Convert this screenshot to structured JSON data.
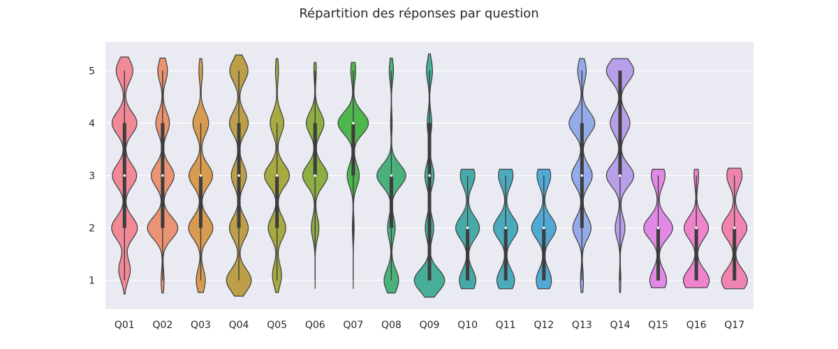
{
  "chart_data": {
    "type": "violin",
    "title": "Répartition des réponses par question",
    "xlabel": "",
    "ylabel": "",
    "ylim": [
      0.45,
      5.55
    ],
    "yticks": [
      1,
      2,
      3,
      4,
      5
    ],
    "grid": true,
    "legend": "none",
    "background": "#eaeaf2",
    "categories": [
      "Q01",
      "Q02",
      "Q03",
      "Q04",
      "Q05",
      "Q06",
      "Q07",
      "Q08",
      "Q09",
      "Q10",
      "Q11",
      "Q12",
      "Q13",
      "Q14",
      "Q15",
      "Q16",
      "Q17"
    ],
    "colors": [
      "#f18a96",
      "#eb9474",
      "#d99b4f",
      "#bc9f48",
      "#a8a941",
      "#8cae42",
      "#4eb64d",
      "#4ab17c",
      "#47ae99",
      "#48aaa8",
      "#4babbc",
      "#53a9d5",
      "#95abe9",
      "#b99fe9",
      "#e289e6",
      "#ee84cc",
      "#f084b0"
    ],
    "series": [
      {
        "name": "Q01",
        "density": [
          {
            "y": 1.2,
            "w": 0.38
          },
          {
            "y": 2.0,
            "w": 0.85
          },
          {
            "y": 3.0,
            "w": 0.8
          },
          {
            "y": 4.0,
            "w": 0.82
          },
          {
            "y": 5.0,
            "w": 0.55
          }
        ],
        "range": [
          0.74,
          5.26
        ],
        "median": 3,
        "q1": 2,
        "q3": 4,
        "min": 1,
        "max": 5
      },
      {
        "name": "Q02",
        "density": [
          {
            "y": 1.0,
            "w": 0.1
          },
          {
            "y": 2.0,
            "w": 1.0
          },
          {
            "y": 3.0,
            "w": 0.75
          },
          {
            "y": 4.0,
            "w": 0.45
          },
          {
            "y": 5.0,
            "w": 0.32
          }
        ],
        "range": [
          0.76,
          5.24
        ],
        "median": 3,
        "q1": 2,
        "q3": 4,
        "min": 1,
        "max": 5
      },
      {
        "name": "Q03",
        "density": [
          {
            "y": 1.0,
            "w": 0.3
          },
          {
            "y": 2.0,
            "w": 0.8
          },
          {
            "y": 3.0,
            "w": 0.78
          },
          {
            "y": 4.0,
            "w": 0.52
          },
          {
            "y": 5.0,
            "w": 0.12
          }
        ],
        "range": [
          0.77,
          5.23
        ],
        "median": 3,
        "q1": 2,
        "q3": 3,
        "min": 1,
        "max": 4
      },
      {
        "name": "Q04",
        "density": [
          {
            "y": 1.0,
            "w": 0.82
          },
          {
            "y": 2.0,
            "w": 0.62
          },
          {
            "y": 3.0,
            "w": 0.5
          },
          {
            "y": 4.0,
            "w": 0.62
          },
          {
            "y": 5.0,
            "w": 0.6
          }
        ],
        "range": [
          0.7,
          5.3
        ],
        "median": 3,
        "q1": 2,
        "q3": 4,
        "min": 1,
        "max": 5
      },
      {
        "name": "Q05",
        "density": [
          {
            "y": 1.1,
            "w": 0.3
          },
          {
            "y": 2.0,
            "w": 0.58
          },
          {
            "y": 3.0,
            "w": 0.82
          },
          {
            "y": 4.0,
            "w": 0.45
          },
          {
            "y": 5.0,
            "w": 0.1
          }
        ],
        "range": [
          0.77,
          5.23
        ],
        "median": 3,
        "q1": 2,
        "q3": 3,
        "min": 1,
        "max": 4
      },
      {
        "name": "Q06",
        "density": [
          {
            "y": 2.0,
            "w": 0.25
          },
          {
            "y": 3.0,
            "w": 0.82
          },
          {
            "y": 4.0,
            "w": 0.58
          },
          {
            "y": 5.0,
            "w": 0.08
          }
        ],
        "range": [
          0.84,
          5.16
        ],
        "median": 3,
        "q1": 3,
        "q3": 4,
        "min": 1,
        "max": 5
      },
      {
        "name": "Q07",
        "density": [
          {
            "y": 2.0,
            "w": 0.06
          },
          {
            "y": 3.0,
            "w": 0.4
          },
          {
            "y": 4.0,
            "w": 1.0
          },
          {
            "y": 5.0,
            "w": 0.16
          }
        ],
        "range": [
          0.84,
          5.16
        ],
        "median": 4,
        "q1": 3,
        "q3": 4,
        "min": 1,
        "max": 5
      },
      {
        "name": "Q08",
        "density": [
          {
            "y": 1.0,
            "w": 0.48
          },
          {
            "y": 2.0,
            "w": 0.25
          },
          {
            "y": 3.0,
            "w": 0.95
          },
          {
            "y": 4.0,
            "w": 0.05
          },
          {
            "y": 5.0,
            "w": 0.14
          }
        ],
        "range": [
          0.76,
          5.24
        ],
        "median": 3,
        "q1": 2,
        "q3": 3,
        "min": 1,
        "max": 5
      },
      {
        "name": "Q09",
        "density": [
          {
            "y": 1.0,
            "w": 1.0
          },
          {
            "y": 2.0,
            "w": 0.28
          },
          {
            "y": 3.0,
            "w": 0.3
          },
          {
            "y": 4.0,
            "w": 0.15
          },
          {
            "y": 5.0,
            "w": 0.2
          }
        ],
        "range": [
          0.68,
          5.32
        ],
        "median": 3,
        "q1": 1,
        "q3": 4,
        "min": 1,
        "max": 5
      },
      {
        "name": "Q10",
        "density": [
          {
            "y": 1.0,
            "w": 0.54
          },
          {
            "y": 2.0,
            "w": 0.78
          },
          {
            "y": 3.0,
            "w": 0.48
          }
        ],
        "range": [
          0.84,
          3.12
        ],
        "median": 2,
        "q1": 1,
        "q3": 2,
        "min": 1,
        "max": 3
      },
      {
        "name": "Q11",
        "density": [
          {
            "y": 1.0,
            "w": 0.58
          },
          {
            "y": 2.0,
            "w": 0.8
          },
          {
            "y": 3.0,
            "w": 0.48
          }
        ],
        "range": [
          0.84,
          3.12
        ],
        "median": 2,
        "q1": 1,
        "q3": 2,
        "min": 1,
        "max": 3
      },
      {
        "name": "Q12",
        "density": [
          {
            "y": 1.0,
            "w": 0.5
          },
          {
            "y": 2.0,
            "w": 0.8
          },
          {
            "y": 3.0,
            "w": 0.45
          }
        ],
        "range": [
          0.84,
          3.12
        ],
        "median": 2,
        "q1": 1,
        "q3": 2,
        "min": 1,
        "max": 3
      },
      {
        "name": "Q13",
        "density": [
          {
            "y": 1.0,
            "w": 0.1
          },
          {
            "y": 2.0,
            "w": 0.6
          },
          {
            "y": 3.0,
            "w": 0.68
          },
          {
            "y": 4.0,
            "w": 0.85
          },
          {
            "y": 5.0,
            "w": 0.28
          }
        ],
        "range": [
          0.77,
          5.23
        ],
        "median": 3,
        "q1": 2,
        "q3": 4,
        "min": 1,
        "max": 5
      },
      {
        "name": "Q14",
        "density": [
          {
            "y": 1.0,
            "w": 0.05
          },
          {
            "y": 2.0,
            "w": 0.32
          },
          {
            "y": 3.0,
            "w": 0.9
          },
          {
            "y": 4.0,
            "w": 0.65
          },
          {
            "y": 5.0,
            "w": 0.9
          }
        ],
        "range": [
          0.77,
          5.23
        ],
        "median": 3,
        "q1": 3,
        "q3": 5,
        "min": 1,
        "max": 5
      },
      {
        "name": "Q15",
        "density": [
          {
            "y": 1.0,
            "w": 0.55
          },
          {
            "y": 2.0,
            "w": 0.95
          },
          {
            "y": 3.0,
            "w": 0.45
          }
        ],
        "range": [
          0.86,
          3.12
        ],
        "median": 2,
        "q1": 1,
        "q3": 2,
        "min": 1,
        "max": 3
      },
      {
        "name": "Q16",
        "density": [
          {
            "y": 1.0,
            "w": 0.85
          },
          {
            "y": 2.0,
            "w": 0.8
          },
          {
            "y": 3.0,
            "w": 0.15
          }
        ],
        "range": [
          0.86,
          3.12
        ],
        "median": 2,
        "q1": 1,
        "q3": 2,
        "min": 1,
        "max": 3
      },
      {
        "name": "Q17",
        "density": [
          {
            "y": 1.0,
            "w": 0.85
          },
          {
            "y": 2.0,
            "w": 0.82
          },
          {
            "y": 3.0,
            "w": 0.5
          }
        ],
        "range": [
          0.84,
          3.14
        ],
        "median": 2,
        "q1": 1,
        "q3": 2,
        "min": 1,
        "max": 3
      }
    ]
  }
}
